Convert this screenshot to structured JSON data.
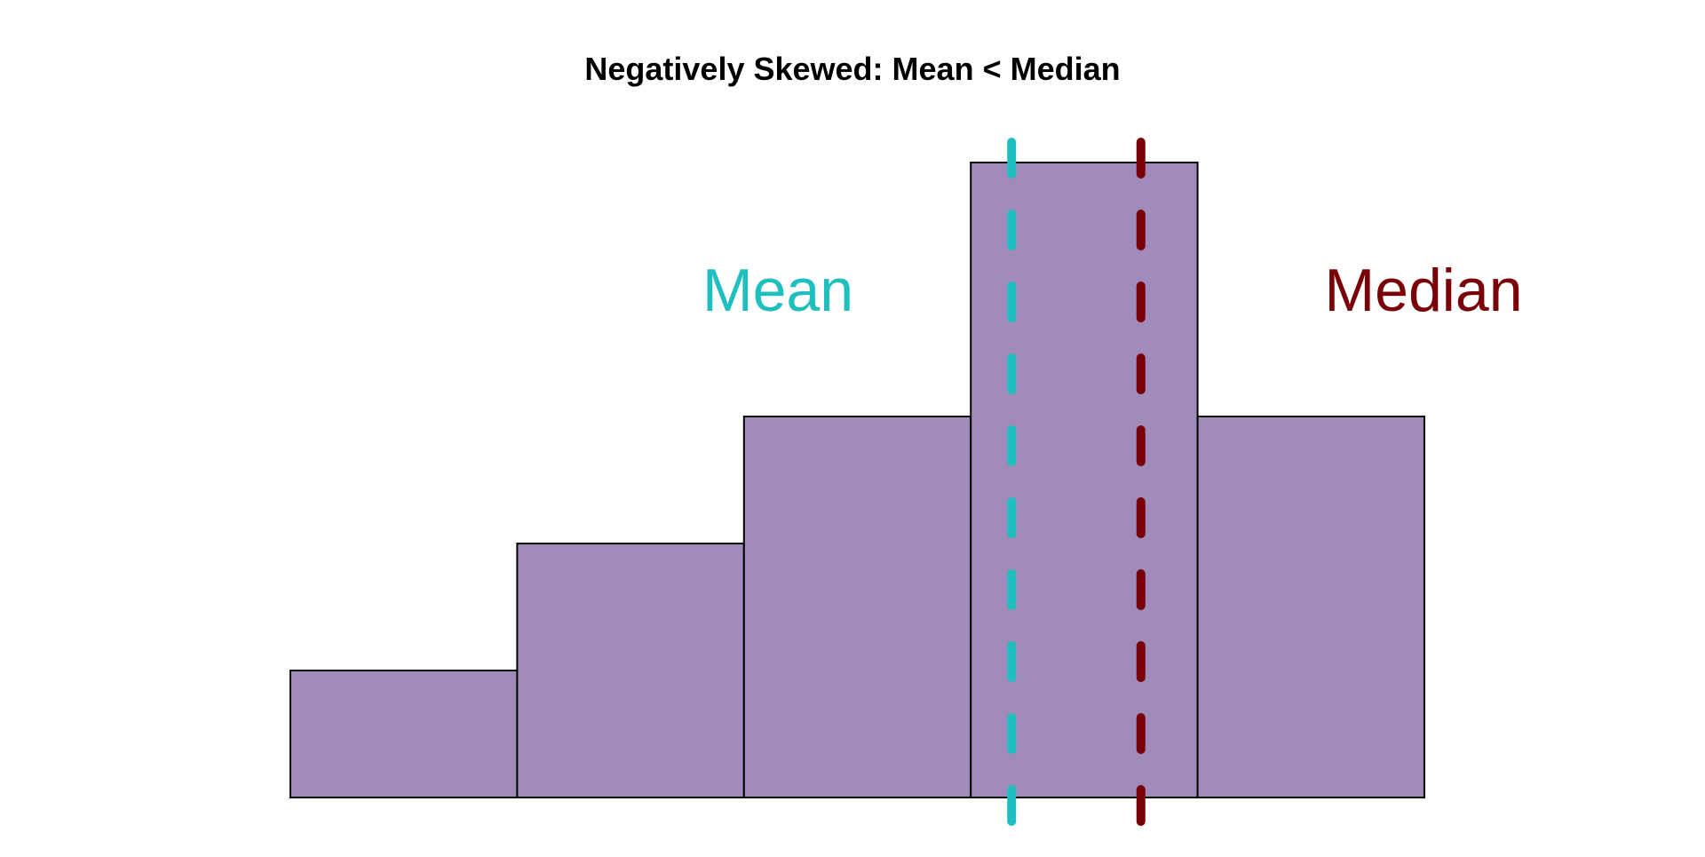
{
  "chart_data": {
    "type": "bar",
    "title": "Negatively Skewed: Mean < Median",
    "xlabel": "",
    "ylabel": "",
    "bins": [
      {
        "start": 0,
        "end": 1,
        "count": 1
      },
      {
        "start": 1,
        "end": 2,
        "count": 2
      },
      {
        "start": 2,
        "end": 3,
        "count": 3
      },
      {
        "start": 3,
        "end": 4,
        "count": 5
      },
      {
        "start": 4,
        "end": 5,
        "count": 3
      }
    ],
    "xlim": [
      0,
      5
    ],
    "ylim": [
      0,
      5
    ],
    "bar_color": "#a08bba",
    "bar_edge_color": "#000000",
    "axes_visible": false,
    "grid": false,
    "reference_lines": [
      {
        "name": "mean",
        "label": "Mean",
        "x": 3.18,
        "color": "#1fbfbf",
        "style": "dashed"
      },
      {
        "name": "median",
        "label": "Median",
        "x": 3.75,
        "color": "#7a0008",
        "style": "dashed"
      }
    ]
  }
}
